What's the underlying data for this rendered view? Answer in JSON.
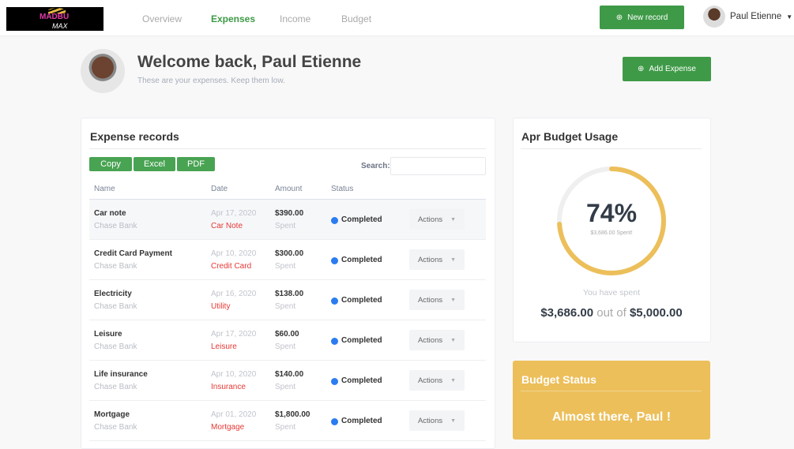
{
  "header": {
    "logo_text": "MADBU MAX",
    "nav": [
      {
        "label": "Overview",
        "active": false
      },
      {
        "label": "Expenses",
        "active": true
      },
      {
        "label": "Income",
        "active": false
      },
      {
        "label": "Budget",
        "active": false
      }
    ],
    "new_record": "New record",
    "user_name": "Paul Etienne"
  },
  "hero": {
    "title": "Welcome back, Paul Etienne",
    "subtitle": "These are your expenses. Keep them low.",
    "add_expense": "Add Expense"
  },
  "records": {
    "title": "Expense records",
    "export": [
      "Copy",
      "Excel",
      "PDF"
    ],
    "search_label": "Search:",
    "search_value": "",
    "columns": [
      "Name",
      "Date",
      "Amount",
      "Status"
    ],
    "rows": [
      {
        "name": "Car note",
        "bank": "Chase Bank",
        "date": "Apr 17, 2020",
        "category": "Car Note",
        "amount": "$390.00",
        "amount_note": "Spent",
        "status": "Completed",
        "action": "Actions"
      },
      {
        "name": "Credit Card Payment",
        "bank": "Chase Bank",
        "date": "Apr 10, 2020",
        "category": "Credit Card",
        "amount": "$300.00",
        "amount_note": "Spent",
        "status": "Completed",
        "action": "Actions"
      },
      {
        "name": "Electricity",
        "bank": "Chase Bank",
        "date": "Apr 16, 2020",
        "category": "Utility",
        "amount": "$138.00",
        "amount_note": "Spent",
        "status": "Completed",
        "action": "Actions"
      },
      {
        "name": "Leisure",
        "bank": "Chase Bank",
        "date": "Apr 17, 2020",
        "category": "Leisure",
        "amount": "$60.00",
        "amount_note": "Spent",
        "status": "Completed",
        "action": "Actions"
      },
      {
        "name": "Life insurance",
        "bank": "Chase Bank",
        "date": "Apr 10, 2020",
        "category": "Insurance",
        "amount": "$140.00",
        "amount_note": "Spent",
        "status": "Completed",
        "action": "Actions"
      },
      {
        "name": "Mortgage",
        "bank": "Chase Bank",
        "date": "Apr 01, 2020",
        "category": "Mortgage",
        "amount": "$1,800.00",
        "amount_note": "Spent",
        "status": "Completed",
        "action": "Actions"
      }
    ]
  },
  "budget": {
    "title": "Apr Budget Usage",
    "percent": 74,
    "percent_label": "74%",
    "spent_caption": "$3,686.00 Spent!",
    "you_have_spent": "You have spent",
    "spent": "$3,686.00",
    "out_of": "out of",
    "total": "$5,000.00",
    "ring_color": "#ecbf5a"
  },
  "status": {
    "title": "Budget Status",
    "message": "Almost there, Paul !"
  }
}
